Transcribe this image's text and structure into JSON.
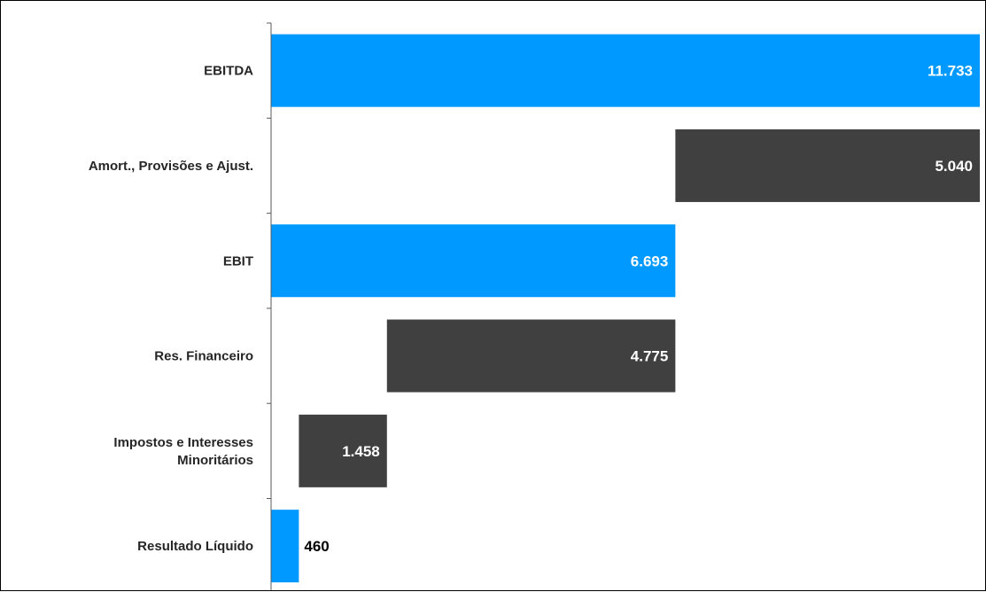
{
  "chart_data": {
    "type": "bar",
    "subtype": "horizontal-waterfall",
    "title": "",
    "xlabel": "",
    "ylabel": "",
    "xlim": [
      0,
      11733
    ],
    "grid": false,
    "legend": "none",
    "colors": {
      "total": "#0099ff",
      "step": "#404040",
      "label_on_bar": "#ffffff",
      "label_outside": "#000000"
    },
    "categories": [
      [
        "EBITDA"
      ],
      [
        "Amort., Provisões e Ajust."
      ],
      [
        "EBIT"
      ],
      [
        "Res. Financeiro"
      ],
      [
        "Impostos e Interesses",
        "Minoritários"
      ],
      [
        "Resultado Líquido"
      ]
    ],
    "bars": [
      {
        "start": 0,
        "end": 11733,
        "value": 11733,
        "label": "11.733",
        "kind": "total"
      },
      {
        "start": 6693,
        "end": 11733,
        "value": 5040,
        "label": "5.040",
        "kind": "step"
      },
      {
        "start": 0,
        "end": 6693,
        "value": 6693,
        "label": "6.693",
        "kind": "total"
      },
      {
        "start": 1918,
        "end": 6693,
        "value": 4775,
        "label": "4.775",
        "kind": "step"
      },
      {
        "start": 460,
        "end": 1918,
        "value": 1458,
        "label": "1.458",
        "kind": "step"
      },
      {
        "start": 0,
        "end": 460,
        "value": 460,
        "label": "460",
        "kind": "total"
      }
    ]
  }
}
